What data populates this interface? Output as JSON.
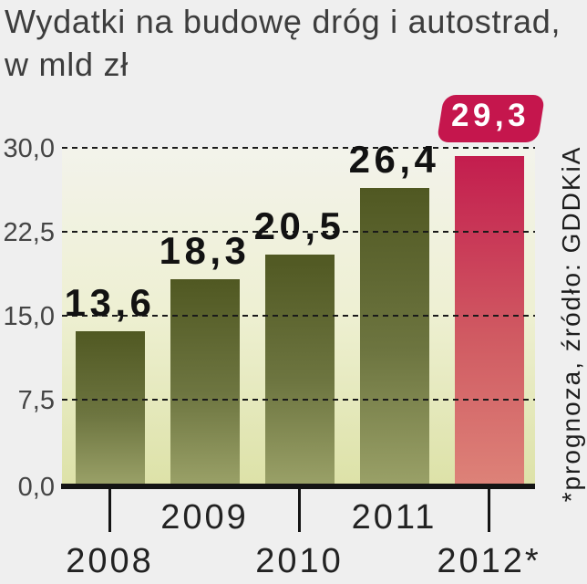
{
  "chart_data": {
    "type": "bar",
    "title": "Wydatki na budowę dróg i autostrad, w mld zł",
    "title_line1": "Wydatki na budowę dróg i autostrad,",
    "title_line2": "w mld zł",
    "categories": [
      "2008",
      "2009",
      "2010",
      "2011",
      "2012*"
    ],
    "values": [
      13.6,
      18.3,
      20.5,
      26.4,
      29.3
    ],
    "value_labels": [
      "13,6",
      "18,3",
      "20,5",
      "26,4",
      "29,3"
    ],
    "highlight_index": 4,
    "highlight_style": "red bar with rounded badge label",
    "y_ticks": [
      0,
      7.5,
      15,
      22.5,
      30
    ],
    "y_tick_labels": [
      "0,0",
      "7,5",
      "15,0",
      "22,5",
      "30,0"
    ],
    "ylim": [
      0,
      30
    ],
    "xlabel": "",
    "ylabel": "",
    "grid": "horizontal dashed",
    "legend": "none",
    "annotation": "*prognoza, źródło: GDDKiA",
    "colors": {
      "page_background": "#efefef",
      "plot_background_top": "#f9f9f1",
      "plot_background_bottom": "#dde2a8",
      "bar_top": "#505822",
      "bar_bottom": "#99a067",
      "highlight_bar_top": "#c31d4e",
      "highlight_bar_bottom": "#dd8278",
      "badge": "#c5164d",
      "badge_text": "#ffffff",
      "axis": "#141414",
      "title_text": "#3d3d3d",
      "value_text": "#121212"
    }
  }
}
